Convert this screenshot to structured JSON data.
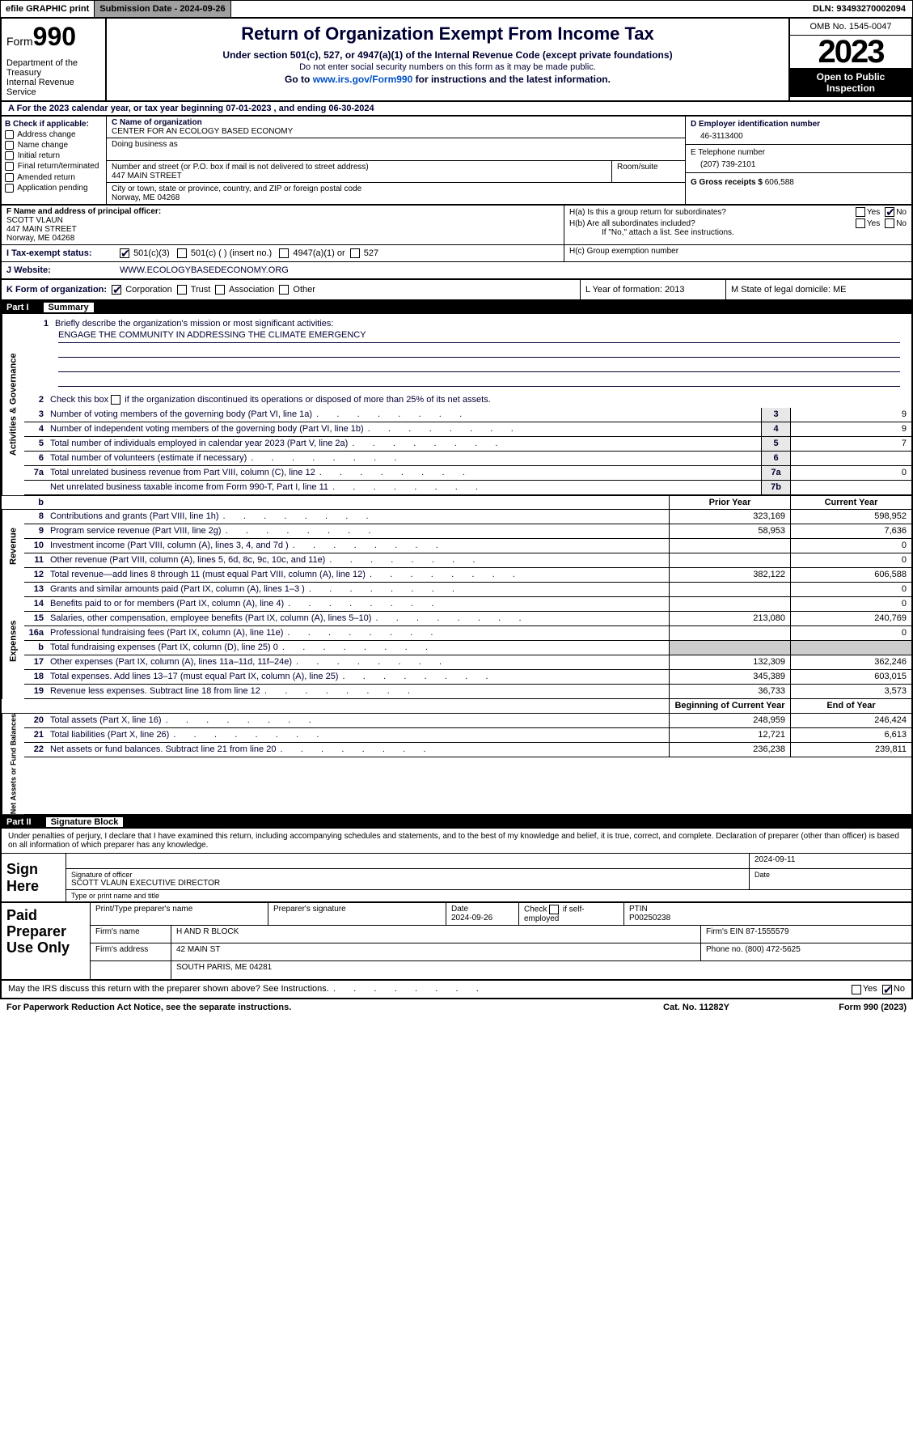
{
  "topbar": {
    "efile": "efile GRAPHIC print",
    "submission": "Submission Date - 2024-09-26",
    "dln": "DLN: 93493270002094"
  },
  "header": {
    "form_label": "Form",
    "form_num": "990",
    "dept": "Department of the Treasury",
    "irs": "Internal Revenue Service",
    "title": "Return of Organization Exempt From Income Tax",
    "sub1": "Under section 501(c), 527, or 4947(a)(1) of the Internal Revenue Code (except private foundations)",
    "sub2": "Do not enter social security numbers on this form as it may be made public.",
    "goto_pre": "Go to ",
    "goto_link": "www.irs.gov/Form990",
    "goto_post": " for instructions and the latest information.",
    "omb": "OMB No. 1545-0047",
    "year": "2023",
    "open": "Open to Public Inspection"
  },
  "rowA": "A For the 2023 calendar year, or tax year beginning 07-01-2023   , and ending 06-30-2024",
  "boxB": {
    "label": "B Check if applicable:",
    "opts": [
      "Address change",
      "Name change",
      "Initial return",
      "Final return/terminated",
      "Amended return",
      "Application pending"
    ]
  },
  "boxC": {
    "c_label": "C Name of organization",
    "org": "CENTER FOR AN ECOLOGY BASED ECONOMY",
    "dba_label": "Doing business as",
    "addr_label": "Number and street (or P.O. box if mail is not delivered to street address)",
    "room": "Room/suite",
    "addr": "447 MAIN STREET",
    "city_label": "City or town, state or province, country, and ZIP or foreign postal code",
    "city": "Norway, ME  04268"
  },
  "boxD": {
    "label": "D Employer identification number",
    "val": "46-3113400"
  },
  "boxE": {
    "label": "E Telephone number",
    "val": "(207) 739-2101"
  },
  "boxG": {
    "label": "G Gross receipts $",
    "val": "606,588"
  },
  "boxF": {
    "label": "F  Name and address of principal officer:",
    "name": "SCOTT VLAUN",
    "l1": "447 MAIN STREET",
    "l2": "Norway, ME  04268"
  },
  "boxH": {
    "ha": "H(a)  Is this a group return for subordinates?",
    "hb": "H(b)  Are all subordinates included?",
    "hbnote": "If \"No,\" attach a list. See instructions.",
    "hc": "H(c)  Group exemption number"
  },
  "taxrow": {
    "label": "I   Tax-exempt status:",
    "o1": "501(c)(3)",
    "o2": "501(c) (  ) (insert no.)",
    "o3": "4947(a)(1) or",
    "o4": "527"
  },
  "website": {
    "label": "J   Website:",
    "val": "WWW.ECOLOGYBASEDECONOMY.ORG"
  },
  "krow": {
    "label": "K Form of organization:",
    "opts": [
      "Corporation",
      "Trust",
      "Association",
      "Other"
    ],
    "l": "L Year of formation: 2013",
    "m": "M State of legal domicile: ME"
  },
  "partI": {
    "num": "Part I",
    "title": "Summary"
  },
  "summary": {
    "q1": "Briefly describe the organization's mission or most significant activities:",
    "mission": "ENGAGE THE COMMUNITY IN ADDRESSING THE CLIMATE EMERGENCY",
    "q2": "Check this box      if the organization discontinued its operations or disposed of more than 25% of its net assets.",
    "rows_gov": [
      {
        "n": "3",
        "t": "Number of voting members of the governing body (Part VI, line 1a)",
        "c": "3",
        "v": "9"
      },
      {
        "n": "4",
        "t": "Number of independent voting members of the governing body (Part VI, line 1b)",
        "c": "4",
        "v": "9"
      },
      {
        "n": "5",
        "t": "Total number of individuals employed in calendar year 2023 (Part V, line 2a)",
        "c": "5",
        "v": "7"
      },
      {
        "n": "6",
        "t": "Total number of volunteers (estimate if necessary)",
        "c": "6",
        "v": ""
      },
      {
        "n": "7a",
        "t": "Total unrelated business revenue from Part VIII, column (C), line 12",
        "c": "7a",
        "v": "0"
      },
      {
        "n": "",
        "t": "Net unrelated business taxable income from Form 990-T, Part I, line 11",
        "c": "7b",
        "v": ""
      }
    ],
    "hdr_b": "b",
    "prior": "Prior Year",
    "curr": "Current Year",
    "rows_rev": [
      {
        "n": "8",
        "t": "Contributions and grants (Part VIII, line 1h)",
        "p": "323,169",
        "c": "598,952"
      },
      {
        "n": "9",
        "t": "Program service revenue (Part VIII, line 2g)",
        "p": "58,953",
        "c": "7,636"
      },
      {
        "n": "10",
        "t": "Investment income (Part VIII, column (A), lines 3, 4, and 7d )",
        "p": "",
        "c": "0"
      },
      {
        "n": "11",
        "t": "Other revenue (Part VIII, column (A), lines 5, 6d, 8c, 9c, 10c, and 11e)",
        "p": "",
        "c": "0"
      },
      {
        "n": "12",
        "t": "Total revenue—add lines 8 through 11 (must equal Part VIII, column (A), line 12)",
        "p": "382,122",
        "c": "606,588"
      }
    ],
    "rows_exp": [
      {
        "n": "13",
        "t": "Grants and similar amounts paid (Part IX, column (A), lines 1–3 )",
        "p": "",
        "c": "0"
      },
      {
        "n": "14",
        "t": "Benefits paid to or for members (Part IX, column (A), line 4)",
        "p": "",
        "c": "0"
      },
      {
        "n": "15",
        "t": "Salaries, other compensation, employee benefits (Part IX, column (A), lines 5–10)",
        "p": "213,080",
        "c": "240,769"
      },
      {
        "n": "16a",
        "t": "Professional fundraising fees (Part IX, column (A), line 11e)",
        "p": "",
        "c": "0"
      },
      {
        "n": "b",
        "t": "Total fundraising expenses (Part IX, column (D), line 25) 0",
        "p": "GREY",
        "c": "GREY"
      },
      {
        "n": "17",
        "t": "Other expenses (Part IX, column (A), lines 11a–11d, 11f–24e)",
        "p": "132,309",
        "c": "362,246"
      },
      {
        "n": "18",
        "t": "Total expenses. Add lines 13–17 (must equal Part IX, column (A), line 25)",
        "p": "345,389",
        "c": "603,015"
      },
      {
        "n": "19",
        "t": "Revenue less expenses. Subtract line 18 from line 12",
        "p": "36,733",
        "c": "3,573"
      }
    ],
    "begin": "Beginning of Current Year",
    "end": "End of Year",
    "rows_net": [
      {
        "n": "20",
        "t": "Total assets (Part X, line 16)",
        "p": "248,959",
        "c": "246,424"
      },
      {
        "n": "21",
        "t": "Total liabilities (Part X, line 26)",
        "p": "12,721",
        "c": "6,613"
      },
      {
        "n": "22",
        "t": "Net assets or fund balances. Subtract line 21 from line 20",
        "p": "236,238",
        "c": "239,811"
      }
    ],
    "sides": {
      "gov": "Activities & Governance",
      "rev": "Revenue",
      "exp": "Expenses",
      "net": "Net Assets or Fund Balances"
    }
  },
  "partII": {
    "num": "Part II",
    "title": "Signature Block"
  },
  "sig": {
    "decl": "Under penalties of perjury, I declare that I have examined this return, including accompanying schedules and statements, and to the best of my knowledge and belief, it is true, correct, and complete. Declaration of preparer (other than officer) is based on all information of which preparer has any knowledge.",
    "sign_here": "Sign Here",
    "sig_label": "Signature of officer",
    "date_label": "Date",
    "date_val": "2024-09-11",
    "officer": "SCOTT VLAUN  EXECUTIVE DIRECTOR",
    "type_label": "Type or print name and title"
  },
  "paid": {
    "label": "Paid Preparer Use Only",
    "h1": "Print/Type preparer's name",
    "h2": "Preparer's signature",
    "h3": "Date",
    "h3v": "2024-09-26",
    "h4": "Check        if self-employed",
    "h5": "PTIN",
    "h5v": "P00250238",
    "firm_l": "Firm's name",
    "firm": "H AND R BLOCK",
    "ein_l": "Firm's EIN",
    "ein": "87-1555579",
    "addr_l": "Firm's address",
    "addr1": "42 MAIN ST",
    "addr2": "SOUTH PARIS, ME  04281",
    "phone_l": "Phone no.",
    "phone": "(800) 472-5625"
  },
  "discuss": "May the IRS discuss this return with the preparer shown above? See Instructions.",
  "foot": {
    "l": "For Paperwork Reduction Act Notice, see the separate instructions.",
    "m": "Cat. No. 11282Y",
    "r": "Form 990 (2023)"
  },
  "yn": {
    "yes": "Yes",
    "no": "No"
  }
}
